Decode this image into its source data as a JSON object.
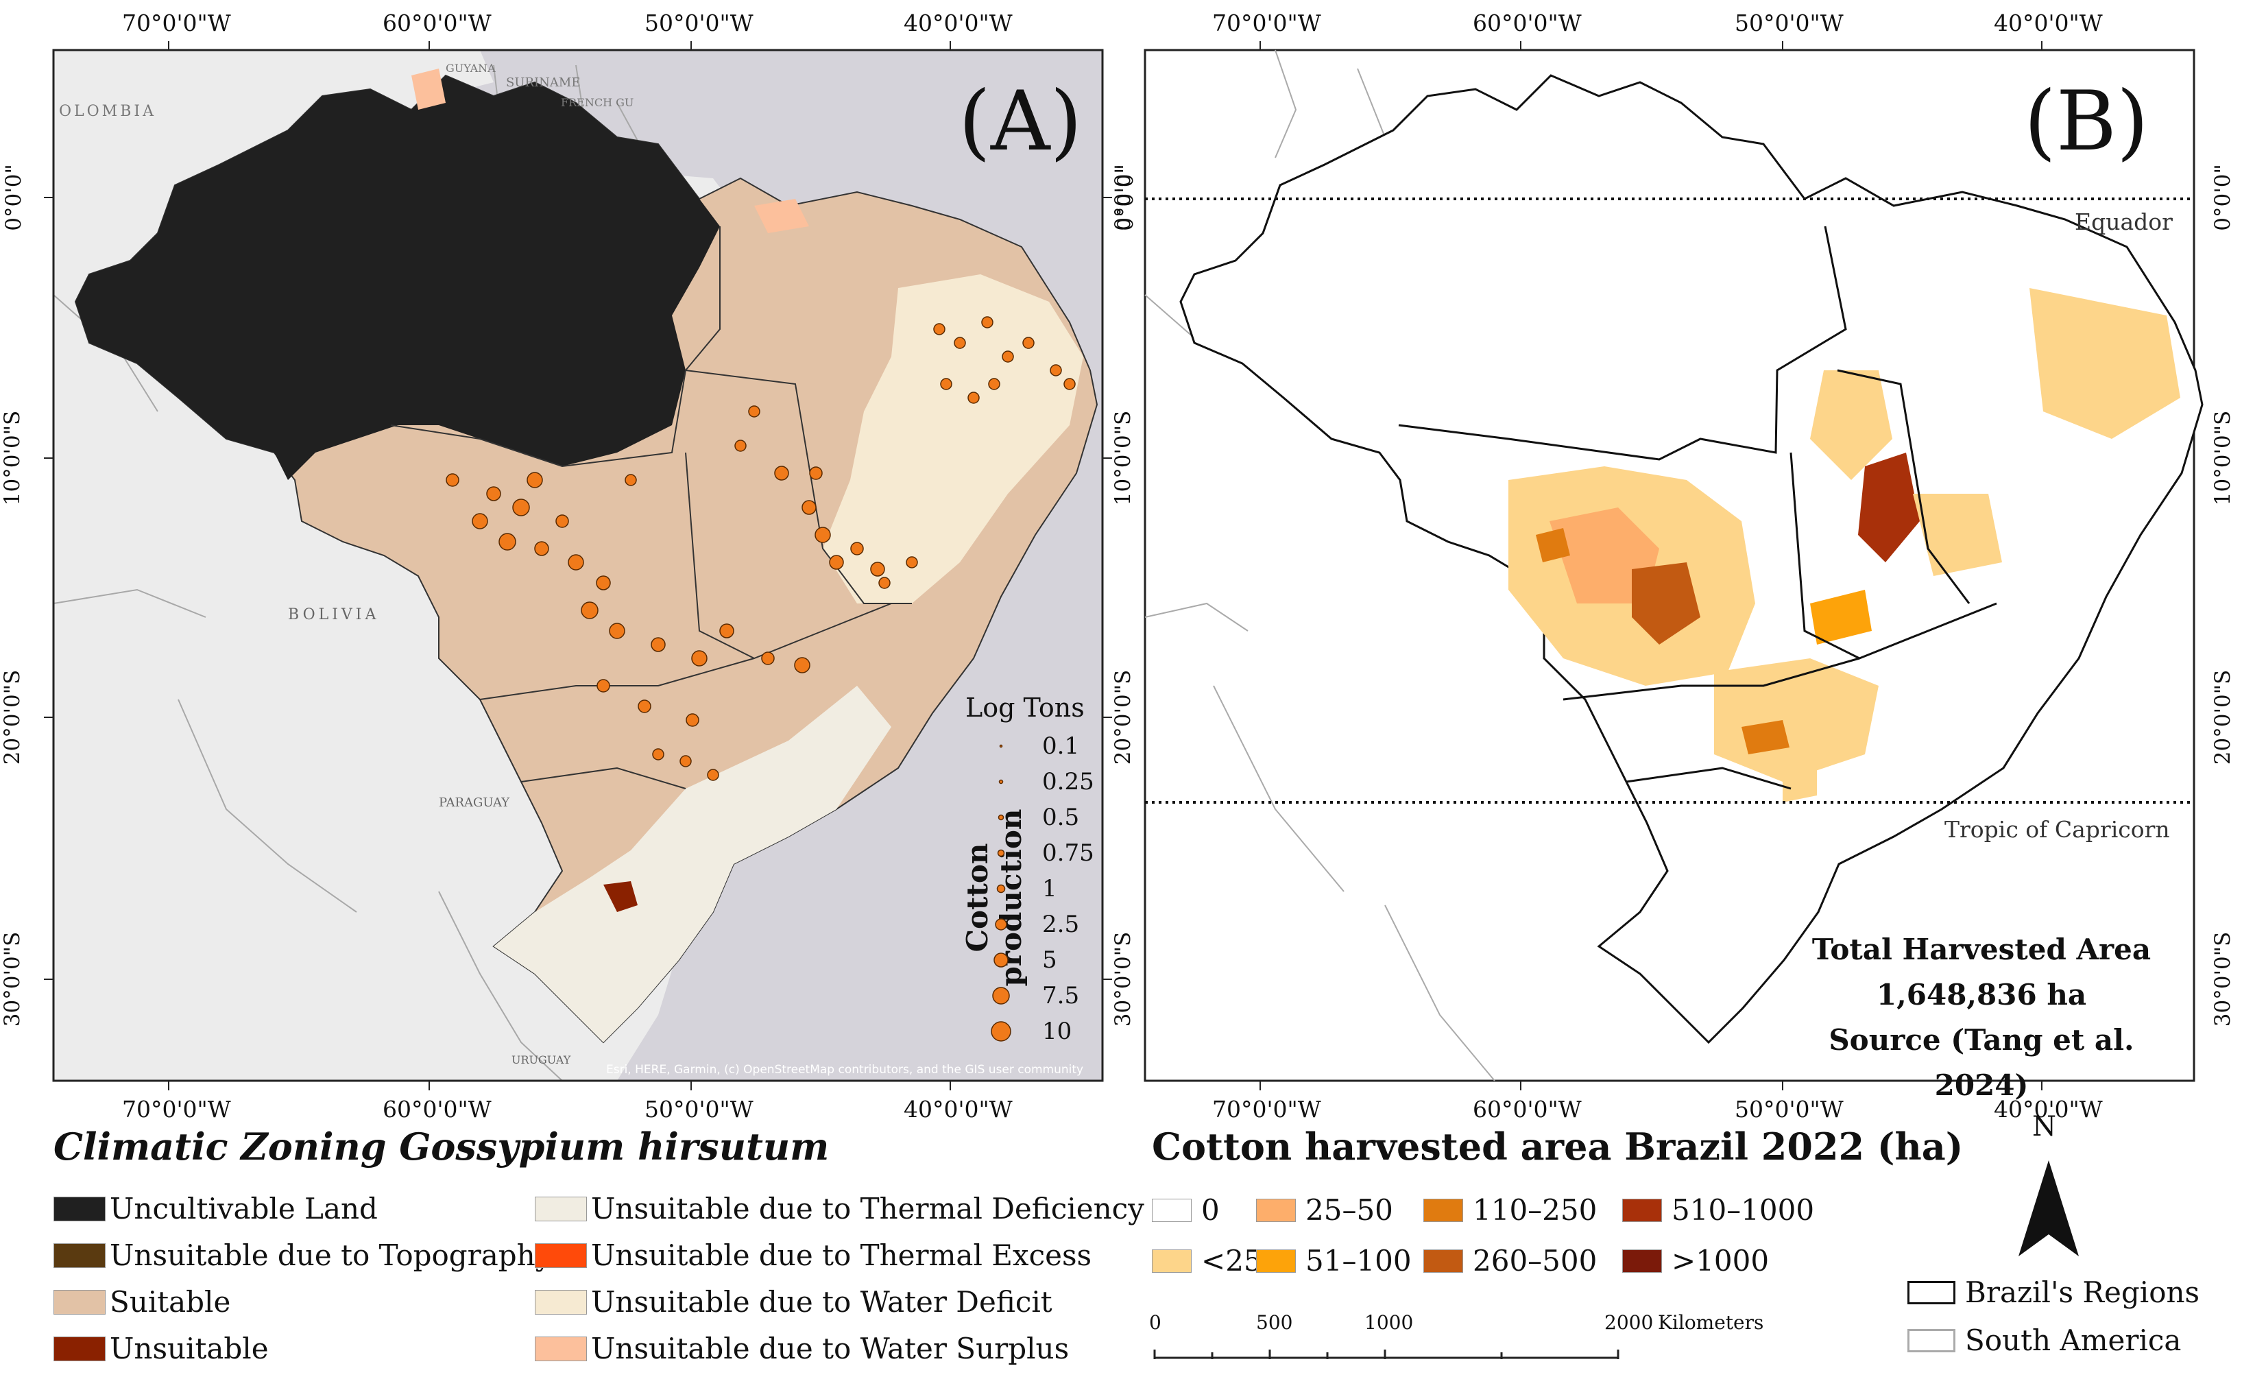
{
  "coords": {
    "top_x": [
      "70°0'0\"W",
      "60°0'0\"W",
      "50°0'0\"W",
      "40°0'0\"W"
    ],
    "side_y": [
      "0°0'0\"",
      "10°0'0\"S",
      "20°0'0\"S",
      "30°0'0\"S"
    ]
  },
  "panel_a": {
    "label": "(A)",
    "countries": [
      "OLOMBIA",
      "SURINAME",
      "FRENCH GU",
      "GUYANA",
      "BOLIVIA",
      "PARAGUAY",
      "URUGUAY"
    ],
    "attribution": "Esri, HERE, Garmin, (c) OpenStreetMap contributors, and the GIS user community",
    "size_legend": {
      "title": "Log Tons",
      "axis_title": "Cotton production",
      "values": [
        "0.1",
        "0.25",
        "0.5",
        "0.75",
        "1",
        "2.5",
        "5",
        "7.5",
        "10"
      ]
    }
  },
  "panel_b": {
    "label": "(B)",
    "equador": "Equador",
    "tropic": "Tropic of Capricorn",
    "box_line1": "Total Harvested Area",
    "box_line2": "1,648,836 ha",
    "box_line3": "Source (Tang et al. 2024)"
  },
  "legend_a": {
    "title": "Climatic Zoning Gossypium hirsutum",
    "items": [
      {
        "label": "Uncultivable Land",
        "color": "#202020"
      },
      {
        "label": "Unsuitable due to Topography",
        "color": "#5a3a10"
      },
      {
        "label": "Suitable",
        "color": "#e2c2a6"
      },
      {
        "label": "Unsuitable",
        "color": "#8a2100"
      },
      {
        "label": "Unsuitable due to Thermal Deficiency",
        "color": "#f1ede2"
      },
      {
        "label": "Unsuitable due to Thermal Excess",
        "color": "#ff4a0a"
      },
      {
        "label": "Unsuitable due to Water Deficit",
        "color": "#f6ead2"
      },
      {
        "label": "Unsuitable due to Water Surplus",
        "color": "#fcc09c"
      }
    ]
  },
  "legend_b": {
    "title": "Cotton harvested area Brazil 2022 (ha)",
    "items": [
      {
        "label": "0",
        "color": "#ffffff"
      },
      {
        "label": "<25",
        "color": "#fdd58a"
      },
      {
        "label": "25–50",
        "color": "#fdae6b"
      },
      {
        "label": "51–100",
        "color": "#fda30a"
      },
      {
        "label": "110–250",
        "color": "#e07b10"
      },
      {
        "label": "260–500",
        "color": "#c25a12"
      },
      {
        "label": "510–1000",
        "color": "#a8300a"
      },
      {
        "label": ">1000",
        "color": "#7b1a0a"
      }
    ]
  },
  "scale": {
    "ticks": [
      "0",
      "500",
      "1000",
      "2000"
    ],
    "unit": "Kilometers"
  },
  "north": "N",
  "region_legend": {
    "brazil": "Brazil's Regions",
    "south_america": "South America"
  }
}
